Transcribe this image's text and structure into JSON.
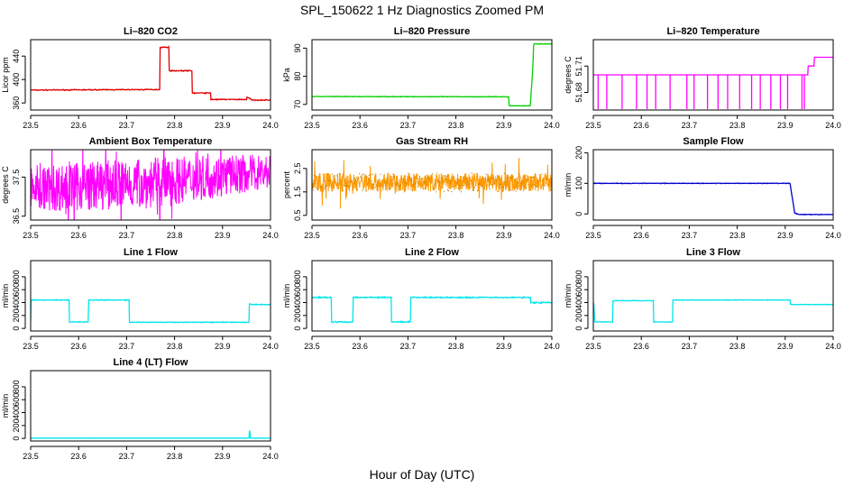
{
  "figure": {
    "title": "SPL_150622  1 Hz Diagnostics Zoomed PM",
    "xlabel": "Hour of Day (UTC)"
  },
  "chart_data": [
    {
      "type": "line",
      "title": "Li–820 CO2",
      "ylabel": "Licor ppm",
      "color": "#e00000",
      "xlim": [
        23.5,
        24.0
      ],
      "ylim": [
        348,
        468
      ],
      "x_ticks": [
        "23.5",
        "23.6",
        "23.7",
        "23.8",
        "23.9",
        "24.0"
      ],
      "y_ticks": [
        360,
        400,
        440
      ],
      "noise": 1.2,
      "series": [
        {
          "x": [
            23.5,
            23.769,
            23.77,
            23.788,
            23.789,
            23.836,
            23.837,
            23.875,
            23.876,
            23.95,
            23.951,
            23.96,
            23.961,
            24.0
          ],
          "y": [
            382,
            383,
            455,
            455,
            415,
            415,
            377,
            377,
            366,
            366,
            370,
            366,
            365,
            365
          ]
        }
      ]
    },
    {
      "type": "line",
      "title": "Li–820 Pressure",
      "ylabel": "kPa",
      "color": "#00d000",
      "xlim": [
        23.5,
        24.0
      ],
      "ylim": [
        68,
        93
      ],
      "x_ticks": [
        "23.5",
        "23.6",
        "23.7",
        "23.8",
        "23.9",
        "24.0"
      ],
      "y_ticks": [
        70,
        80,
        90
      ],
      "noise": 0.15,
      "series": [
        {
          "x": [
            23.5,
            23.91,
            23.911,
            23.955,
            23.96,
            23.962,
            23.963,
            24.0
          ],
          "y": [
            72.8,
            72.7,
            69.5,
            69.5,
            82,
            91,
            91.5,
            91.5
          ]
        }
      ]
    },
    {
      "type": "line",
      "title": "Li–820 Temperature",
      "ylabel": "degrees C",
      "color": "#ff00ff",
      "xlim": [
        23.5,
        24.0
      ],
      "ylim": [
        51.66,
        51.74
      ],
      "x_ticks": [
        "23.5",
        "23.6",
        "23.7",
        "23.8",
        "23.9",
        "24.0"
      ],
      "y_ticks": [
        51.68,
        51.71
      ],
      "spikes_down": [
        23.51,
        23.528,
        23.56,
        23.59,
        23.612,
        23.63,
        23.66,
        23.695,
        23.71,
        23.738,
        23.76,
        23.78,
        23.805,
        23.83,
        23.848,
        23.87,
        23.89,
        23.905,
        23.935,
        23.94
      ],
      "series": [
        {
          "x": [
            23.5,
            23.947,
            23.948,
            23.96,
            23.961,
            24.0
          ],
          "y": [
            51.7,
            51.7,
            51.71,
            51.71,
            51.72,
            51.72
          ]
        }
      ]
    },
    {
      "type": "line",
      "title": "Ambient Box Temperature",
      "ylabel": "degrees C",
      "color": "#ff00ff",
      "xlim": [
        23.5,
        24.0
      ],
      "ylim": [
        36.4,
        38.2
      ],
      "x_ticks": [
        "23.5",
        "23.6",
        "23.7",
        "23.8",
        "23.9",
        "24.0"
      ],
      "y_ticks": [
        36.5,
        37.5
      ],
      "band": [
        {
          "x": 23.5,
          "lo": 36.6,
          "hi": 37.8
        },
        {
          "x": 23.75,
          "lo": 36.7,
          "hi": 38.0
        },
        {
          "x": 24.0,
          "lo": 37.2,
          "hi": 38.1
        }
      ]
    },
    {
      "type": "line",
      "title": "Gas Stream RH",
      "ylabel": "percent",
      "color": "#ff9900",
      "color2": "#c08000",
      "xlim": [
        23.5,
        24.0
      ],
      "ylim": [
        0.3,
        3.3
      ],
      "x_ticks": [
        "23.5",
        "23.6",
        "23.7",
        "23.8",
        "23.9",
        "24.0"
      ],
      "y_ticks": [
        0.5,
        1.5,
        2.5
      ],
      "y_tick_labels": [
        "0.5",
        "1.5",
        "2.5"
      ],
      "band": [
        {
          "x": 23.5,
          "lo": 1.5,
          "hi": 2.3
        },
        {
          "x": 24.0,
          "lo": 1.5,
          "hi": 2.3
        }
      ]
    },
    {
      "type": "line",
      "title": "Sample Flow",
      "ylabel": "ml/min",
      "color": "#0000cc",
      "xlim": [
        23.5,
        24.0
      ],
      "ylim": [
        -20,
        210
      ],
      "x_ticks": [
        "23.5",
        "23.6",
        "23.7",
        "23.8",
        "23.9",
        "24.0"
      ],
      "y_ticks": [
        0,
        100,
        200
      ],
      "noise": 1.5,
      "series": [
        {
          "x": [
            23.5,
            23.91,
            23.92,
            23.93,
            24.0
          ],
          "y": [
            100,
            100,
            2,
            -2,
            -2
          ]
        }
      ]
    },
    {
      "type": "line",
      "title": "Line 1 Flow",
      "ylabel": "ml/min",
      "color": "#00e5ee",
      "xlim": [
        23.5,
        24.0
      ],
      "ylim": [
        -40,
        1050
      ],
      "x_ticks": [
        "23.5",
        "23.6",
        "23.7",
        "23.8",
        "23.9",
        "24.0"
      ],
      "y_ticks": [
        0,
        200,
        400,
        600,
        800
      ],
      "noise": 8,
      "series": [
        {
          "x": [
            23.5,
            23.501,
            23.503,
            23.58,
            23.581,
            23.62,
            23.621,
            23.705,
            23.706,
            23.955,
            23.956,
            23.96,
            24.0
          ],
          "y": [
            110,
            430,
            440,
            440,
            100,
            100,
            440,
            440,
            95,
            95,
            380,
            370,
            370
          ]
        }
      ]
    },
    {
      "type": "line",
      "title": "Line 2 Flow",
      "ylabel": "ml/min",
      "color": "#00e5ee",
      "xlim": [
        23.5,
        24.0
      ],
      "ylim": [
        -40,
        1050
      ],
      "x_ticks": [
        "23.5",
        "23.6",
        "23.7",
        "23.8",
        "23.9",
        "24.0"
      ],
      "y_ticks": [
        0,
        200,
        400,
        600,
        800
      ],
      "noise": 14,
      "series": [
        {
          "x": [
            23.5,
            23.54,
            23.541,
            23.585,
            23.586,
            23.665,
            23.666,
            23.705,
            23.706,
            23.955,
            23.956,
            24.0
          ],
          "y": [
            480,
            480,
            100,
            100,
            480,
            480,
            100,
            100,
            480,
            480,
            400,
            400
          ]
        }
      ]
    },
    {
      "type": "line",
      "title": "Line 3 Flow",
      "ylabel": "ml/min",
      "color": "#00e5ee",
      "xlim": [
        23.5,
        24.0
      ],
      "ylim": [
        -40,
        1050
      ],
      "x_ticks": [
        "23.5",
        "23.6",
        "23.7",
        "23.8",
        "23.9",
        "24.0"
      ],
      "y_ticks": [
        0,
        200,
        400,
        600,
        800
      ],
      "noise": 6,
      "series": [
        {
          "x": [
            23.5,
            23.501,
            23.503,
            23.54,
            23.541,
            23.625,
            23.626,
            23.665,
            23.666,
            23.91,
            23.911,
            24.0
          ],
          "y": [
            380,
            380,
            100,
            100,
            430,
            430,
            100,
            100,
            440,
            440,
            370,
            370
          ]
        }
      ]
    },
    {
      "type": "line",
      "title": "Line 4 (LT) Flow",
      "ylabel": "ml/min",
      "color": "#00e5ee",
      "xlim": [
        23.5,
        24.0
      ],
      "ylim": [
        -40,
        1050
      ],
      "x_ticks": [
        "23.5",
        "23.6",
        "23.7",
        "23.8",
        "23.9",
        "24.0"
      ],
      "y_ticks": [
        0,
        200,
        400,
        600,
        800
      ],
      "noise": 1,
      "series": [
        {
          "x": [
            23.5,
            23.955,
            23.956,
            23.957,
            23.958,
            24.0
          ],
          "y": [
            5,
            5,
            110,
            110,
            5,
            5
          ]
        }
      ]
    }
  ]
}
